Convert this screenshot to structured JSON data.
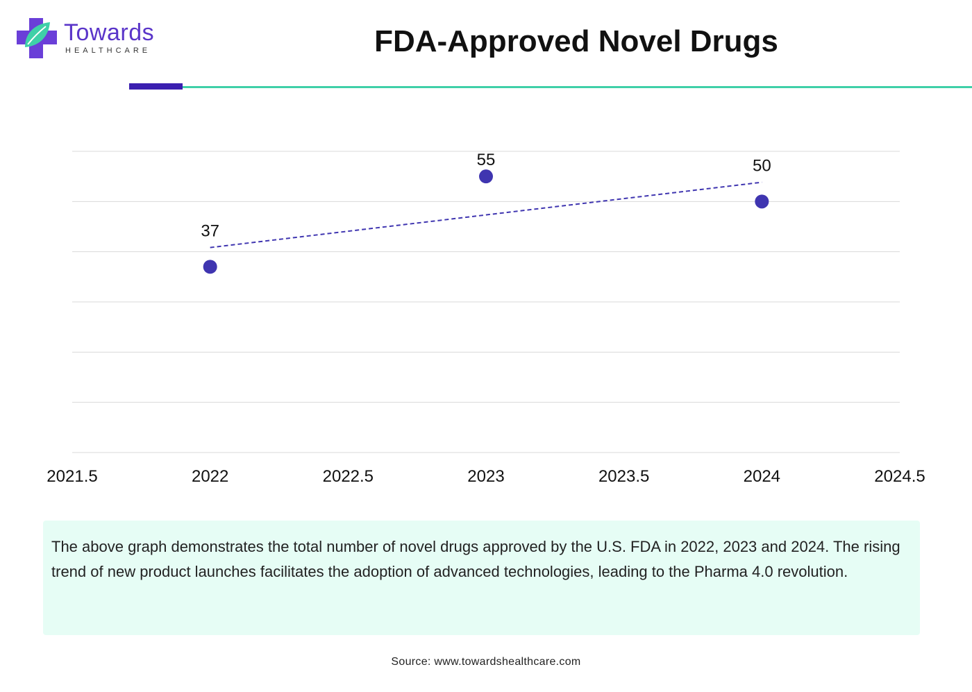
{
  "brand": {
    "name": "Towards",
    "subtitle": "HEALTHCARE",
    "colors": {
      "primary": "#5a35c9",
      "accent": "#3fd0a8",
      "marker": "#3f35b0"
    }
  },
  "header": {
    "title": "FDA-Approved Novel Drugs"
  },
  "chart_data": {
    "type": "scatter",
    "title": "FDA-Approved Novel Drugs",
    "xlabel": "",
    "ylabel": "",
    "x": [
      2022,
      2023,
      2024
    ],
    "y": [
      37,
      55,
      50
    ],
    "data_labels": [
      "37",
      "55",
      "50"
    ],
    "trendline": {
      "type": "linear",
      "style": "dashed"
    },
    "xlim": [
      2021.5,
      2024.5
    ],
    "x_ticks": [
      "2021.5",
      "2022",
      "2022.5",
      "2023",
      "2023.5",
      "2024",
      "2024.5"
    ],
    "ylim": [
      0,
      60
    ],
    "grid": true,
    "show_y_ticks": false
  },
  "description": {
    "text": "The above graph demonstrates the total number of novel drugs approved by the U.S. FDA in 2022, 2023 and 2024. The rising trend of new product launches facilitates the adoption of advanced technologies, leading to the Pharma 4.0 revolution."
  },
  "footer": {
    "source": "Source: www.towardshealthcare.com"
  }
}
